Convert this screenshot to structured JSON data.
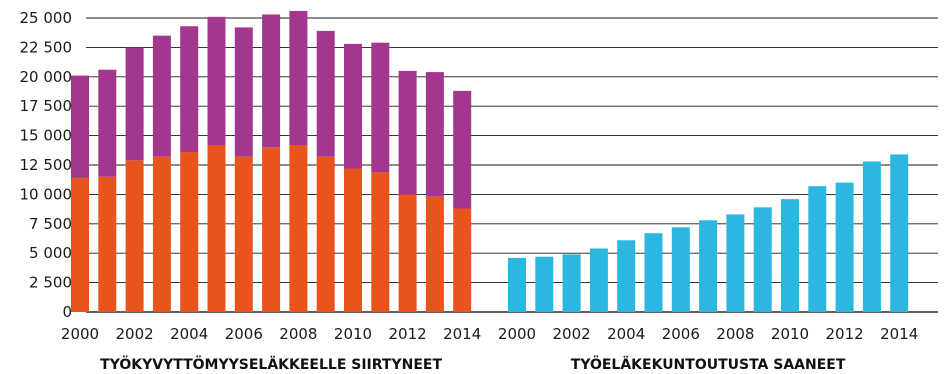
{
  "chart_data": {
    "type": "bar",
    "title": "",
    "xlabel": "",
    "ylabel": "",
    "ylim": [
      0,
      25000
    ],
    "y_ticks": [
      {
        "value": 0,
        "label": "0"
      },
      {
        "value": 2500,
        "label": "2 500"
      },
      {
        "value": 5000,
        "label": "5 000"
      },
      {
        "value": 7500,
        "label": "7 500"
      },
      {
        "value": 10000,
        "label": "10 000"
      },
      {
        "value": 12500,
        "label": "12 500"
      },
      {
        "value": 15000,
        "label": "15 000"
      },
      {
        "value": 17500,
        "label": "17 500"
      },
      {
        "value": 20000,
        "label": "20 000"
      },
      {
        "value": 22500,
        "label": "22 500"
      },
      {
        "value": 25000,
        "label": "25 000"
      }
    ],
    "grid": true,
    "groups": [
      {
        "title": "TYÖKYVYTTÖMYYSELÄKKEELLE SIIRTYNEET",
        "stacked": true,
        "categories": [
          "2000",
          "2001",
          "2002",
          "2003",
          "2004",
          "2005",
          "2006",
          "2007",
          "2008",
          "2009",
          "2010",
          "2011",
          "2012",
          "2013",
          "2014"
        ],
        "x_tick_labels": [
          "2000",
          "",
          "2002",
          "",
          "2004",
          "",
          "2006",
          "",
          "2008",
          "",
          "2010",
          "",
          "2012",
          "",
          "2014"
        ],
        "series": [
          {
            "color": "#e8541c",
            "values": [
              11400,
              11500,
              12900,
              13200,
              13600,
              14200,
              13200,
              14000,
              14200,
              13200,
              12200,
              11900,
              10000,
              9800,
              8800
            ]
          },
          {
            "color": "#a3378e",
            "values": [
              8700,
              9100,
              9600,
              10300,
              10700,
              10900,
              11000,
              11300,
              11400,
              10700,
              10600,
              11000,
              10500,
              10600,
              10000
            ]
          }
        ]
      },
      {
        "title": "TYÖELÄKEKUNTOUTUSTA SAANEET",
        "stacked": false,
        "categories": [
          "2000",
          "2001",
          "2002",
          "2003",
          "2004",
          "2005",
          "2006",
          "2007",
          "2008",
          "2009",
          "2010",
          "2011",
          "2012",
          "2013",
          "2014"
        ],
        "x_tick_labels": [
          "2000",
          "",
          "2002",
          "",
          "2004",
          "",
          "2006",
          "",
          "2008",
          "",
          "2010",
          "",
          "2012",
          "",
          "2014"
        ],
        "series": [
          {
            "color": "#2bb7e0",
            "values": [
              4600,
              4700,
              4900,
              5400,
              6100,
              6700,
              7200,
              7800,
              8300,
              8900,
              9600,
              10700,
              11000,
              12800,
              13400
            ]
          }
        ]
      }
    ]
  }
}
